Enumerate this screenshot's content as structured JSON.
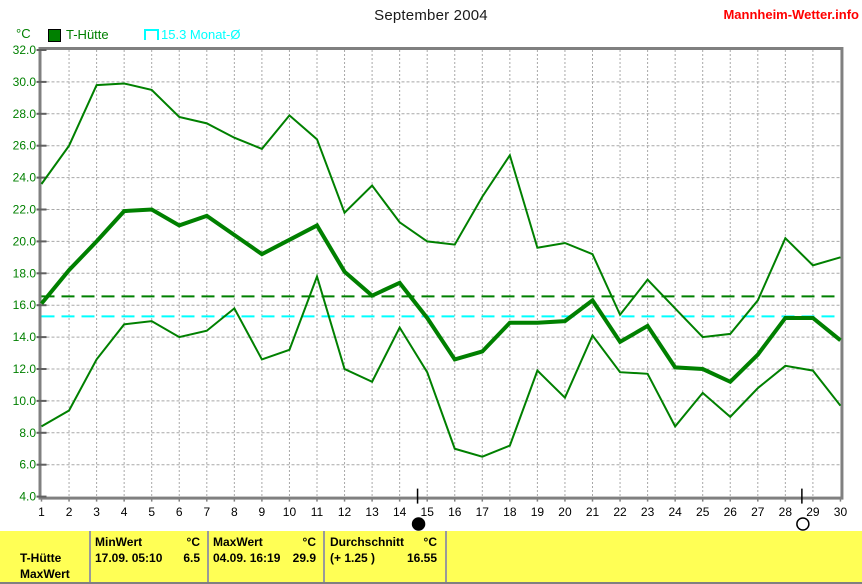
{
  "header": {
    "title": "September 2004",
    "brand": "Mannheim-Wetter.info"
  },
  "legend": {
    "unit": "°C",
    "station_label": "T-Hütte",
    "monthly_avg_label": "15.3 Monat-Ø"
  },
  "chart_data": {
    "type": "line",
    "title": "September 2004",
    "ylabel": "°C",
    "ylim": [
      4,
      32
    ],
    "ytick_step": 2,
    "grid": true,
    "x": [
      1,
      2,
      3,
      4,
      5,
      6,
      7,
      8,
      9,
      10,
      11,
      12,
      13,
      14,
      15,
      16,
      17,
      18,
      19,
      20,
      21,
      22,
      23,
      24,
      25,
      26,
      27,
      28,
      29,
      30
    ],
    "series": [
      {
        "name": "max",
        "color": "#008000",
        "width": 2,
        "values": [
          23.6,
          26.0,
          29.8,
          29.9,
          29.5,
          27.8,
          27.4,
          26.5,
          25.8,
          27.9,
          26.4,
          21.8,
          23.5,
          21.2,
          20.0,
          19.8,
          22.8,
          25.4,
          19.6,
          19.9,
          19.2,
          15.4,
          17.6,
          15.8,
          14.0,
          14.2,
          16.3,
          20.2,
          18.5,
          19.0
        ]
      },
      {
        "name": "mean",
        "color": "#008000",
        "width": 4,
        "values": [
          16.1,
          18.2,
          20.0,
          21.9,
          22.0,
          21.0,
          21.6,
          20.4,
          19.2,
          20.1,
          21.0,
          18.1,
          16.6,
          17.4,
          15.2,
          12.6,
          13.1,
          14.9,
          14.9,
          15.0,
          16.3,
          13.7,
          14.7,
          12.1,
          12.0,
          11.2,
          12.9,
          15.2,
          15.2,
          13.8
        ]
      },
      {
        "name": "min",
        "color": "#008000",
        "width": 2,
        "values": [
          8.4,
          9.4,
          12.6,
          14.8,
          15.0,
          14.0,
          14.4,
          15.8,
          12.6,
          13.2,
          17.8,
          12.0,
          11.2,
          14.6,
          11.8,
          7.0,
          6.5,
          7.2,
          11.9,
          10.2,
          14.1,
          11.8,
          11.7,
          8.4,
          10.5,
          9.0,
          10.8,
          12.2,
          11.9,
          9.7
        ]
      }
    ],
    "reference_lines": [
      {
        "name": "month-average-2004",
        "value": 16.55,
        "color": "#008000",
        "style": "dashed"
      },
      {
        "name": "long-term-month-average",
        "value": 15.3,
        "color": "#00ffff",
        "style": "dashed"
      }
    ],
    "moon_markers": [
      {
        "day": 14.65,
        "phase": "new"
      },
      {
        "day": 28.6,
        "phase": "full"
      }
    ]
  },
  "info_panel": {
    "row_label_line1": "T-Hütte",
    "row_label_line2": "MaxWert",
    "columns": [
      {
        "header": "MinWert",
        "unit": "°C",
        "detail": "17.09. 05:10",
        "value": "6.5"
      },
      {
        "header": "MaxWert",
        "unit": "°C",
        "detail": "04.09. 16:19",
        "value": "29.9"
      },
      {
        "header": "Durchschnitt",
        "unit": "°C",
        "detail": "(+ 1.25 )",
        "value": "16.55"
      }
    ]
  },
  "colors": {
    "line": "#008000",
    "monthly_avg": "#00ffff",
    "brand": "#ff0000",
    "panel_bg": "#ffff55",
    "grid": "#a8a8a8",
    "axis": "#808080"
  }
}
